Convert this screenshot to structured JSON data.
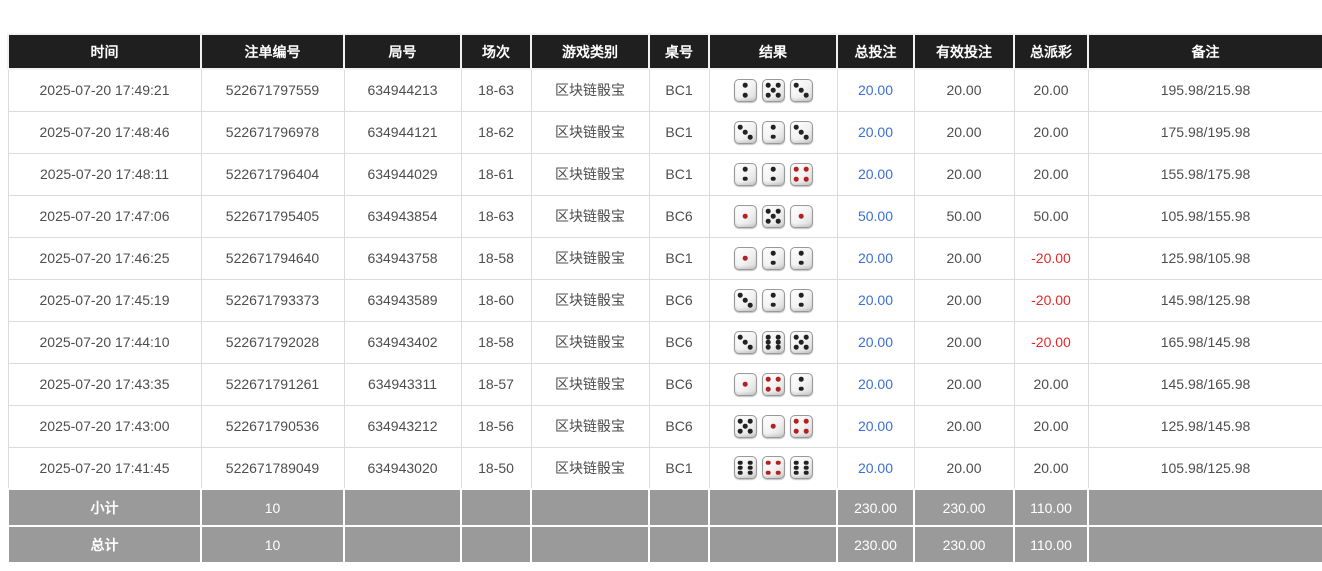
{
  "colors": {
    "header_bg": "#1f1f1f",
    "footer_bg": "#9a9a9a",
    "accent_blue": "#3c6fd6",
    "negative_red": "#e02a2a",
    "dice_red": "#b32020",
    "dice_black": "#222222"
  },
  "table": {
    "headers": [
      "时间",
      "注单编号",
      "局号",
      "场次",
      "游戏类别",
      "桌号",
      "结果",
      "总投注",
      "有效投注",
      "总派彩",
      "备注"
    ],
    "rows": [
      {
        "time": "2025-07-20 17:49:21",
        "bet_id": "522671797559",
        "round": "634944213",
        "session": "18-63",
        "game": "区块链骰宝",
        "table_no": "BC1",
        "dice": [
          2,
          5,
          3
        ],
        "total_bet": "20.00",
        "valid_bet": "20.00",
        "payout": "20.00",
        "remark": "195.98/215.98"
      },
      {
        "time": "2025-07-20 17:48:46",
        "bet_id": "522671796978",
        "round": "634944121",
        "session": "18-62",
        "game": "区块链骰宝",
        "table_no": "BC1",
        "dice": [
          3,
          2,
          3
        ],
        "total_bet": "20.00",
        "valid_bet": "20.00",
        "payout": "20.00",
        "remark": "175.98/195.98"
      },
      {
        "time": "2025-07-20 17:48:11",
        "bet_id": "522671796404",
        "round": "634944029",
        "session": "18-61",
        "game": "区块链骰宝",
        "table_no": "BC1",
        "dice": [
          2,
          2,
          4
        ],
        "total_bet": "20.00",
        "valid_bet": "20.00",
        "payout": "20.00",
        "remark": "155.98/175.98"
      },
      {
        "time": "2025-07-20 17:47:06",
        "bet_id": "522671795405",
        "round": "634943854",
        "session": "18-63",
        "game": "区块链骰宝",
        "table_no": "BC6",
        "dice": [
          1,
          5,
          1
        ],
        "total_bet": "50.00",
        "valid_bet": "50.00",
        "payout": "50.00",
        "remark": "105.98/155.98"
      },
      {
        "time": "2025-07-20 17:46:25",
        "bet_id": "522671794640",
        "round": "634943758",
        "session": "18-58",
        "game": "区块链骰宝",
        "table_no": "BC1",
        "dice": [
          1,
          2,
          2
        ],
        "total_bet": "20.00",
        "valid_bet": "20.00",
        "payout": "-20.00",
        "remark": "125.98/105.98"
      },
      {
        "time": "2025-07-20 17:45:19",
        "bet_id": "522671793373",
        "round": "634943589",
        "session": "18-60",
        "game": "区块链骰宝",
        "table_no": "BC6",
        "dice": [
          3,
          2,
          2
        ],
        "total_bet": "20.00",
        "valid_bet": "20.00",
        "payout": "-20.00",
        "remark": "145.98/125.98"
      },
      {
        "time": "2025-07-20 17:44:10",
        "bet_id": "522671792028",
        "round": "634943402",
        "session": "18-58",
        "game": "区块链骰宝",
        "table_no": "BC6",
        "dice": [
          3,
          6,
          5
        ],
        "total_bet": "20.00",
        "valid_bet": "20.00",
        "payout": "-20.00",
        "remark": "165.98/145.98"
      },
      {
        "time": "2025-07-20 17:43:35",
        "bet_id": "522671791261",
        "round": "634943311",
        "session": "18-57",
        "game": "区块链骰宝",
        "table_no": "BC6",
        "dice": [
          1,
          4,
          2
        ],
        "total_bet": "20.00",
        "valid_bet": "20.00",
        "payout": "20.00",
        "remark": "145.98/165.98"
      },
      {
        "time": "2025-07-20 17:43:00",
        "bet_id": "522671790536",
        "round": "634943212",
        "session": "18-56",
        "game": "区块链骰宝",
        "table_no": "BC6",
        "dice": [
          5,
          1,
          4
        ],
        "total_bet": "20.00",
        "valid_bet": "20.00",
        "payout": "20.00",
        "remark": "125.98/145.98"
      },
      {
        "time": "2025-07-20 17:41:45",
        "bet_id": "522671789049",
        "round": "634943020",
        "session": "18-50",
        "game": "区块链骰宝",
        "table_no": "BC1",
        "dice": [
          6,
          4,
          6
        ],
        "total_bet": "20.00",
        "valid_bet": "20.00",
        "payout": "20.00",
        "remark": "105.98/125.98"
      }
    ],
    "subtotal": {
      "label": "小计",
      "count": "10",
      "total_bet": "230.00",
      "valid_bet": "230.00",
      "payout": "110.00"
    },
    "grand_total": {
      "label": "总计",
      "count": "10",
      "total_bet": "230.00",
      "valid_bet": "230.00",
      "payout": "110.00"
    }
  }
}
